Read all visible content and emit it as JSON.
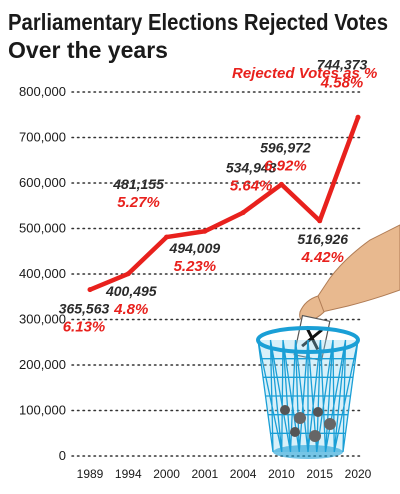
{
  "chart_data": {
    "type": "line",
    "title_line1": "Parliamentary Elections Rejected Votes",
    "title_line2": "Over the years",
    "legend": "Rejected Votes as %",
    "categories": [
      "1989",
      "1994",
      "2000",
      "2001",
      "2004",
      "2010",
      "2015",
      "2020"
    ],
    "values": [
      365563,
      400495,
      481155,
      494009,
      534948,
      596972,
      516926,
      744373
    ],
    "value_labels": [
      "365,563",
      "400,495",
      "481,155",
      "494,009",
      "534,948",
      "596,972",
      "516,926",
      "744,373"
    ],
    "percent_labels": [
      "6.13%",
      "4.8%",
      "5.27%",
      "5.23%",
      "5.64%",
      "6.92%",
      "4.42%",
      "4.58%"
    ],
    "yticks": [
      "800,000",
      "700,000",
      "600,000",
      "500,000",
      "400,000",
      "300,000",
      "200,000",
      "100,000",
      "0"
    ],
    "ylim": [
      0,
      800000
    ],
    "grid": true,
    "line_color": "#e8211d",
    "illustration": "hand-dropping-ballot-in-trash-bin"
  }
}
